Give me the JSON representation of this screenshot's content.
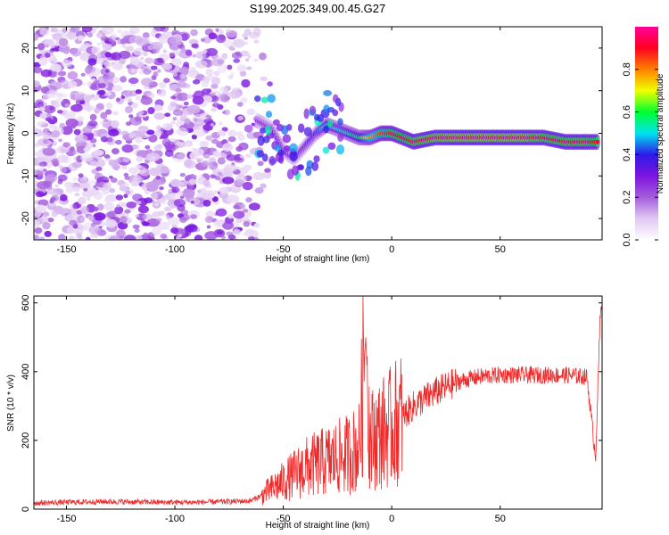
{
  "title": "S199.2025.349.00.45.G27",
  "colors": {
    "snr_line": "#ee2b2b",
    "frame": "#000000",
    "colormap": [
      "#ffffff",
      "#e0c8f2",
      "#a45ddc",
      "#7d14e0",
      "#2d1ae8",
      "#00e4f0",
      "#00ff30",
      "#f0ff00",
      "#ff8000",
      "#ff0020",
      "#ff0098"
    ]
  },
  "chart_data": [
    {
      "type": "heatmap",
      "title": "S199.2025.349.00.45.G27",
      "xlabel": "Height of straight line (km)",
      "ylabel": "Frequency (Hz)",
      "xlim": [
        -165,
        97
      ],
      "ylim": [
        -25,
        25
      ],
      "xticks": [
        -150,
        -100,
        -50,
        0,
        50
      ],
      "yticks": [
        -20,
        -10,
        0,
        10,
        20
      ],
      "colorbar": {
        "label": "Normalized spectral amplitude",
        "range": [
          0,
          1
        ],
        "ticks": [
          "0.0",
          "0.2",
          "0.4",
          "0.6",
          "0.8"
        ],
        "tick_values": [
          0.0,
          0.2,
          0.4,
          0.6,
          0.8
        ]
      },
      "ridge": {
        "x": [
          -62,
          -55,
          -50,
          -45,
          -40,
          -35,
          -30,
          -25,
          -20,
          -15,
          -10,
          -5,
          0,
          5,
          10,
          20,
          30,
          40,
          50,
          60,
          70,
          80,
          90,
          95
        ],
        "freq": [
          3,
          1,
          -4,
          -6,
          -3,
          0,
          2,
          1,
          0,
          -1,
          -1,
          0,
          0,
          -1,
          -2,
          -1,
          -1,
          -1,
          -1,
          -1,
          -1,
          -2,
          -2,
          -2
        ],
        "amplitude": [
          0.3,
          0.3,
          0.35,
          0.3,
          0.35,
          0.4,
          0.55,
          0.5,
          0.55,
          0.6,
          0.75,
          0.85,
          0.9,
          0.92,
          0.95,
          0.98,
          1.0,
          1.0,
          1.0,
          1.0,
          0.95,
          0.95,
          0.95,
          0.9
        ]
      }
    },
    {
      "type": "line",
      "xlabel": "Height of straight line (km)",
      "ylabel": "SNR (10 * v/v)",
      "xlim": [
        -165,
        97
      ],
      "ylim": [
        0,
        620
      ],
      "xticks": [
        -150,
        -100,
        -50,
        0,
        50
      ],
      "yticks": [
        0,
        200,
        400,
        600
      ],
      "series": [
        {
          "name": "SNR",
          "x": [
            -165,
            -150,
            -130,
            -110,
            -90,
            -75,
            -65,
            -60,
            -55,
            -50,
            -45,
            -40,
            -35,
            -30,
            -25,
            -20,
            -15,
            -12,
            -10,
            -8,
            -5,
            0,
            10,
            20,
            30,
            40,
            50,
            60,
            70,
            80,
            90,
            94,
            96,
            97
          ],
          "y": [
            18,
            20,
            22,
            20,
            20,
            22,
            24,
            40,
            60,
            80,
            100,
            120,
            130,
            140,
            150,
            160,
            180,
            500,
            200,
            210,
            220,
            240,
            300,
            340,
            370,
            385,
            390,
            390,
            390,
            390,
            385,
            150,
            540,
            620
          ]
        }
      ]
    }
  ]
}
